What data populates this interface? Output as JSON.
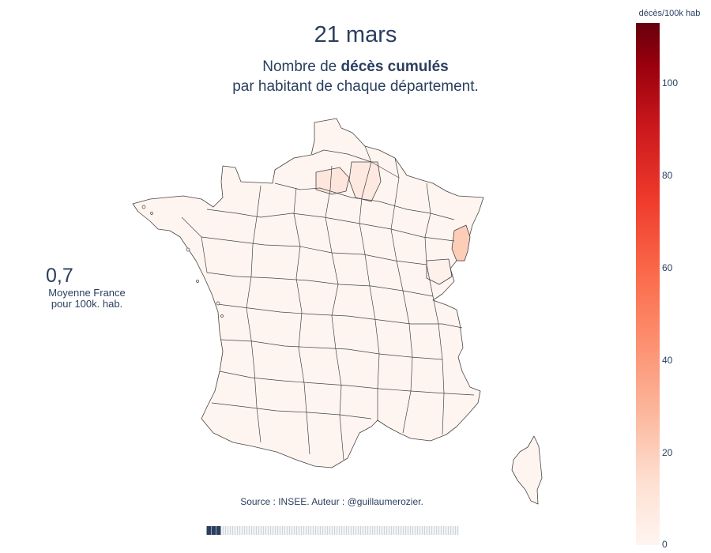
{
  "header": {
    "date": "21 mars",
    "subtitle_prefix": "Nombre de ",
    "subtitle_bold": "décès cumulés",
    "subtitle_line2": "par habitant de chaque département."
  },
  "average": {
    "value": "0,7",
    "label_line1": "Moyenne France",
    "label_line2": "pour 100k. hab."
  },
  "source": "Source : INSEE. Auteur : @guillaumerozier.",
  "colorbar": {
    "title": "décès/100k hab",
    "scale_max": 113,
    "ticks": [
      "0",
      "20",
      "40",
      "60",
      "80",
      "100"
    ]
  },
  "slider": {
    "progress": 0.06
  },
  "colors": {
    "text": "#2a3f5f",
    "border": "#444444",
    "low": "#fff5f0",
    "mid_low": "#fee0d2",
    "high": "#fcbba1",
    "highlight": "#fdcdb8"
  }
}
